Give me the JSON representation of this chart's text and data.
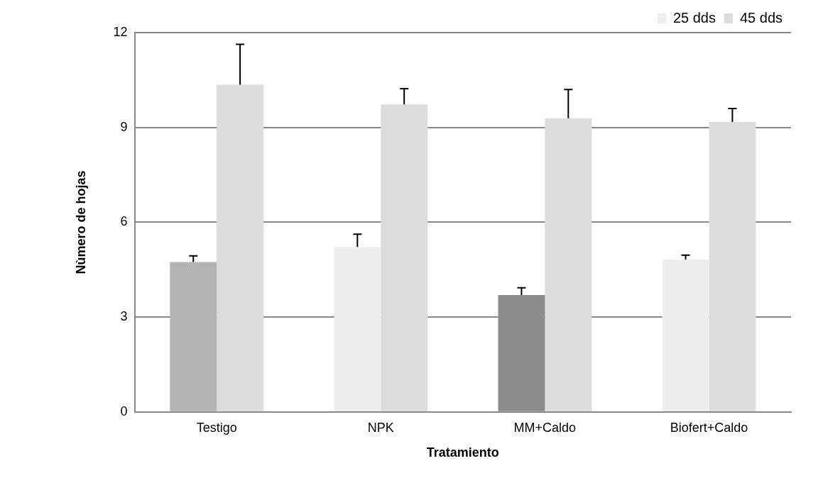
{
  "chart_data": {
    "type": "bar",
    "xlabel": "Tratamiento",
    "ylabel": "Nùmero de hojas",
    "categories": [
      "Testigo",
      "NPK",
      "MM+Caldo",
      "Biofert+Caldo"
    ],
    "series": [
      {
        "name": "25 dds",
        "color": "#eeeeee",
        "colors": [
          "#b4b4b4",
          "#eeeeee",
          "#8c8c8c",
          "#eeeeee"
        ],
        "values": [
          4.74,
          5.22,
          3.7,
          4.82
        ],
        "errors": [
          [
            4.74,
            4.94
          ],
          [
            5.22,
            5.62
          ],
          [
            3.7,
            3.93
          ],
          [
            4.82,
            4.96
          ]
        ]
      },
      {
        "name": "45 dds",
        "color": "#dcdcdc",
        "values": [
          10.35,
          9.73,
          9.29,
          9.17
        ],
        "errors": [
          [
            10.35,
            11.63
          ],
          [
            9.73,
            10.23
          ],
          [
            9.29,
            10.2
          ],
          [
            9.17,
            9.6
          ]
        ]
      }
    ],
    "ylim": [
      0,
      12
    ],
    "yticks": [
      0,
      3,
      6,
      9,
      12
    ],
    "grid": "y",
    "legend": "top right"
  }
}
